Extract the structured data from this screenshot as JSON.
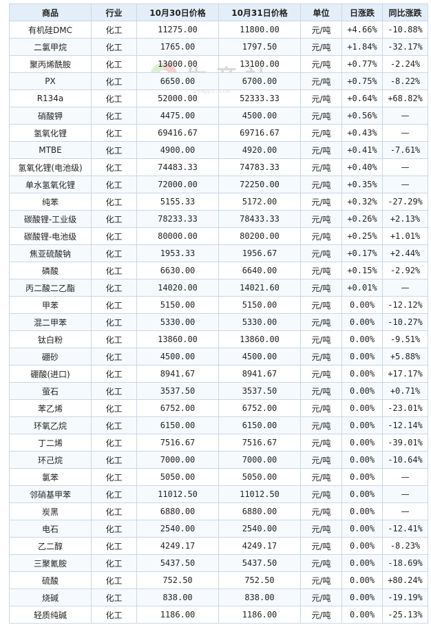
{
  "watermark": {
    "text": "生意社",
    "sub": "100ppi.com"
  },
  "headers": [
    "商品",
    "行业",
    "10月30日价格",
    "10月31日价格",
    "单位",
    "日涨跌",
    "同比涨跌"
  ],
  "rows": [
    {
      "name": "有机硅DMC",
      "industry": "化工",
      "p1": "11275.00",
      "p2": "11800.00",
      "unit": "元/吨",
      "day": "+4.66%",
      "yoy": "-10.88%"
    },
    {
      "name": "二氯甲烷",
      "industry": "化工",
      "p1": "1765.00",
      "p2": "1797.50",
      "unit": "元/吨",
      "day": "+1.84%",
      "yoy": "-32.17%"
    },
    {
      "name": "聚丙烯酰胺",
      "industry": "化工",
      "p1": "13000.00",
      "p2": "13100.00",
      "unit": "元/吨",
      "day": "+0.77%",
      "yoy": "-2.24%"
    },
    {
      "name": "PX",
      "industry": "化工",
      "p1": "6650.00",
      "p2": "6700.00",
      "unit": "元/吨",
      "day": "+0.75%",
      "yoy": "-8.22%"
    },
    {
      "name": "R134a",
      "industry": "化工",
      "p1": "52000.00",
      "p2": "52333.33",
      "unit": "元/吨",
      "day": "+0.64%",
      "yoy": "+68.82%"
    },
    {
      "name": "硝酸钾",
      "industry": "化工",
      "p1": "4475.00",
      "p2": "4500.00",
      "unit": "元/吨",
      "day": "+0.56%",
      "yoy": "—"
    },
    {
      "name": "氢氧化锂",
      "industry": "化工",
      "p1": "69416.67",
      "p2": "69716.67",
      "unit": "元/吨",
      "day": "+0.43%",
      "yoy": "—"
    },
    {
      "name": "MTBE",
      "industry": "化工",
      "p1": "4900.00",
      "p2": "4920.00",
      "unit": "元/吨",
      "day": "+0.41%",
      "yoy": "-7.61%"
    },
    {
      "name": "氢氧化锂(电池级)",
      "industry": "化工",
      "p1": "74483.33",
      "p2": "74783.33",
      "unit": "元/吨",
      "day": "+0.40%",
      "yoy": "—"
    },
    {
      "name": "单水氢氧化锂",
      "industry": "化工",
      "p1": "72000.00",
      "p2": "72250.00",
      "unit": "元/吨",
      "day": "+0.35%",
      "yoy": "—"
    },
    {
      "name": "纯苯",
      "industry": "化工",
      "p1": "5155.33",
      "p2": "5172.00",
      "unit": "元/吨",
      "day": "+0.32%",
      "yoy": "-27.29%"
    },
    {
      "name": "碳酸锂-工业级",
      "industry": "化工",
      "p1": "78233.33",
      "p2": "78433.33",
      "unit": "元/吨",
      "day": "+0.26%",
      "yoy": "+2.13%"
    },
    {
      "name": "碳酸锂-电池级",
      "industry": "化工",
      "p1": "80000.00",
      "p2": "80200.00",
      "unit": "元/吨",
      "day": "+0.25%",
      "yoy": "+1.01%"
    },
    {
      "name": "焦亚硫酸钠",
      "industry": "化工",
      "p1": "1953.33",
      "p2": "1956.67",
      "unit": "元/吨",
      "day": "+0.17%",
      "yoy": "+2.44%"
    },
    {
      "name": "磷酸",
      "industry": "化工",
      "p1": "6630.00",
      "p2": "6640.00",
      "unit": "元/吨",
      "day": "+0.15%",
      "yoy": "-2.92%"
    },
    {
      "name": "丙二酸二乙酯",
      "industry": "化工",
      "p1": "14020.00",
      "p2": "14021.60",
      "unit": "元/吨",
      "day": "+0.01%",
      "yoy": "—"
    },
    {
      "name": "甲苯",
      "industry": "化工",
      "p1": "5150.00",
      "p2": "5150.00",
      "unit": "元/吨",
      "day": "0.00%",
      "yoy": "-12.12%"
    },
    {
      "name": "混二甲苯",
      "industry": "化工",
      "p1": "5330.00",
      "p2": "5330.00",
      "unit": "元/吨",
      "day": "0.00%",
      "yoy": "-10.27%"
    },
    {
      "name": "钛白粉",
      "industry": "化工",
      "p1": "13860.00",
      "p2": "13860.00",
      "unit": "元/吨",
      "day": "0.00%",
      "yoy": "-9.51%"
    },
    {
      "name": "硼砂",
      "industry": "化工",
      "p1": "4500.00",
      "p2": "4500.00",
      "unit": "元/吨",
      "day": "0.00%",
      "yoy": "+5.88%"
    },
    {
      "name": "硼酸(进口)",
      "industry": "化工",
      "p1": "8941.67",
      "p2": "8941.67",
      "unit": "元/吨",
      "day": "0.00%",
      "yoy": "+17.17%"
    },
    {
      "name": "萤石",
      "industry": "化工",
      "p1": "3537.50",
      "p2": "3537.50",
      "unit": "元/吨",
      "day": "0.00%",
      "yoy": "+0.71%"
    },
    {
      "name": "苯乙烯",
      "industry": "化工",
      "p1": "6752.00",
      "p2": "6752.00",
      "unit": "元/吨",
      "day": "0.00%",
      "yoy": "-23.01%"
    },
    {
      "name": "环氧乙烷",
      "industry": "化工",
      "p1": "6150.00",
      "p2": "6150.00",
      "unit": "元/吨",
      "day": "0.00%",
      "yoy": "-12.14%"
    },
    {
      "name": "丁二烯",
      "industry": "化工",
      "p1": "7516.67",
      "p2": "7516.67",
      "unit": "元/吨",
      "day": "0.00%",
      "yoy": "-39.01%"
    },
    {
      "name": "环己烷",
      "industry": "化工",
      "p1": "7000.00",
      "p2": "7000.00",
      "unit": "元/吨",
      "day": "0.00%",
      "yoy": "-10.64%"
    },
    {
      "name": "氯苯",
      "industry": "化工",
      "p1": "5050.00",
      "p2": "5050.00",
      "unit": "元/吨",
      "day": "0.00%",
      "yoy": "—"
    },
    {
      "name": "邻硝基甲苯",
      "industry": "化工",
      "p1": "11012.50",
      "p2": "11012.50",
      "unit": "元/吨",
      "day": "0.00%",
      "yoy": "—"
    },
    {
      "name": "炭黑",
      "industry": "化工",
      "p1": "6880.00",
      "p2": "6880.00",
      "unit": "元/吨",
      "day": "0.00%",
      "yoy": "—"
    },
    {
      "name": "电石",
      "industry": "化工",
      "p1": "2540.00",
      "p2": "2540.00",
      "unit": "元/吨",
      "day": "0.00%",
      "yoy": "-12.41%"
    },
    {
      "name": "乙二醇",
      "industry": "化工",
      "p1": "4249.17",
      "p2": "4249.17",
      "unit": "元/吨",
      "day": "0.00%",
      "yoy": "-8.23%"
    },
    {
      "name": "三聚氰胺",
      "industry": "化工",
      "p1": "5437.50",
      "p2": "5437.50",
      "unit": "元/吨",
      "day": "0.00%",
      "yoy": "-18.69%"
    },
    {
      "name": "硫酸",
      "industry": "化工",
      "p1": "752.50",
      "p2": "752.50",
      "unit": "元/吨",
      "day": "0.00%",
      "yoy": "+80.24%"
    },
    {
      "name": "烧碱",
      "industry": "化工",
      "p1": "838.00",
      "p2": "838.00",
      "unit": "元/吨",
      "day": "0.00%",
      "yoy": "-19.19%"
    },
    {
      "name": "轻质纯碱",
      "industry": "化工",
      "p1": "1186.00",
      "p2": "1186.00",
      "unit": "元/吨",
      "day": "0.00%",
      "yoy": "-25.13%"
    }
  ]
}
